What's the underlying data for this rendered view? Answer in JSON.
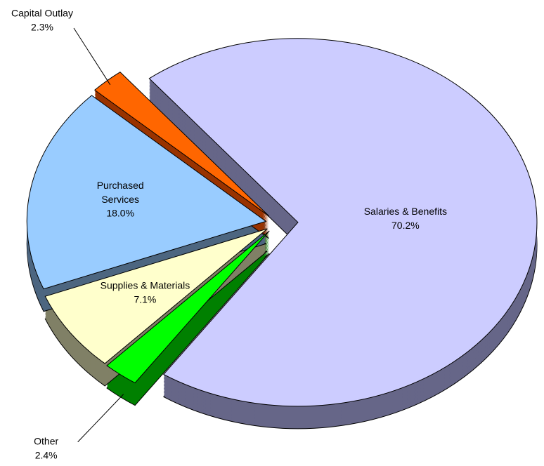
{
  "chart_data": {
    "type": "pie",
    "categories": [
      "Salaries & Benefits",
      "Other",
      "Supplies & Materials",
      "Purchased Services",
      "Capital Outlay"
    ],
    "values": [
      70.2,
      2.4,
      7.1,
      18.0,
      2.3
    ],
    "value_labels": [
      "70.2%",
      "2.4%",
      "7.1%",
      "18.0%",
      "2.3%"
    ],
    "colors": [
      "#ccccff",
      "#00ff00",
      "#ffffcc",
      "#99ccff",
      "#ff6600"
    ],
    "side_colors": [
      "#666688",
      "#008000",
      "#808066",
      "#4d6680",
      "#993300"
    ]
  }
}
